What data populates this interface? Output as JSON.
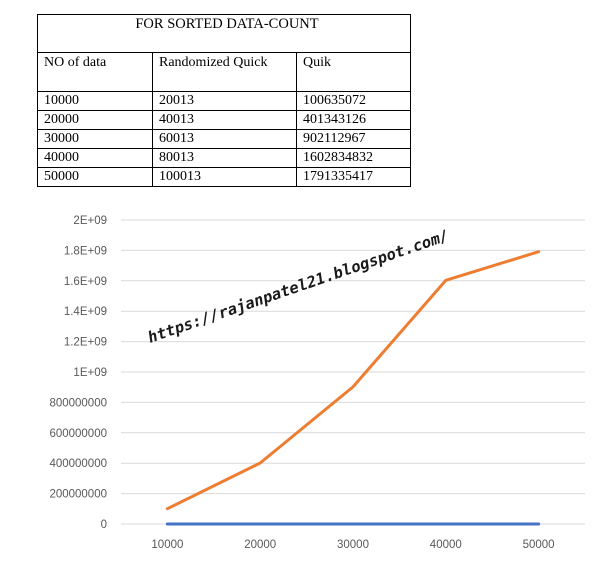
{
  "table": {
    "title": "FOR SORTED DATA-COUNT",
    "headers": [
      "NO of data",
      "Randomized Quick",
      "Quik"
    ],
    "rows": [
      [
        "10000",
        "20013",
        "100635072"
      ],
      [
        "20000",
        "40013",
        "401343126"
      ],
      [
        "30000",
        "60013",
        "902112967"
      ],
      [
        "40000",
        "80013",
        "1602834832"
      ],
      [
        "50000",
        "100013",
        "1791335417"
      ]
    ]
  },
  "chart_data": {
    "type": "line",
    "categories": [
      "10000",
      "20000",
      "30000",
      "40000",
      "50000"
    ],
    "series": [
      {
        "values": [
          20013,
          40013,
          60013,
          80013,
          100013
        ],
        "color": "#4472C4"
      },
      {
        "values": [
          100635072,
          401343126,
          902112967,
          1602834832,
          1791335417
        ],
        "color": "#ED7D31"
      }
    ],
    "ylim": [
      0,
      2000000000
    ],
    "y_ticks": [
      "0",
      "200000000",
      "400000000",
      "600000000",
      "800000000",
      "1E+09",
      "1.2E+09",
      "1.4E+09",
      "1.6E+09",
      "1.8E+09",
      "2E+09"
    ],
    "grid": true,
    "gridline_color": "#D9D9D9",
    "title": "",
    "xlabel": "",
    "ylabel": "",
    "watermark": "https://rajanpatel21.blogspot.com/"
  }
}
